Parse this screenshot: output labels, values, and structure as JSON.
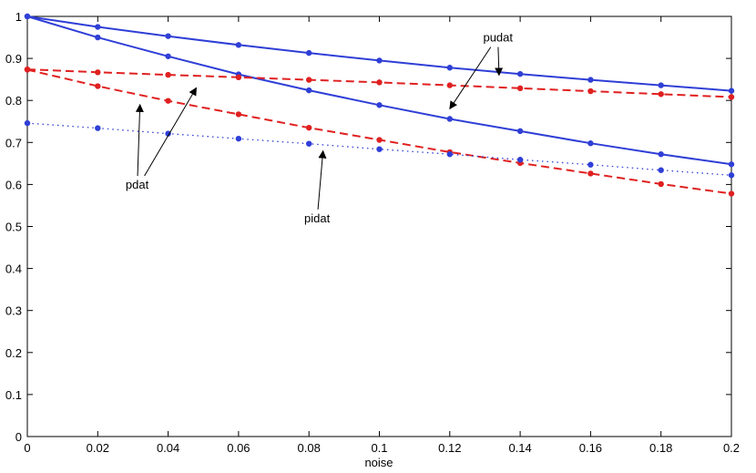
{
  "chart_data": {
    "type": "line",
    "title": "",
    "xlabel": "noise",
    "ylabel": "",
    "xlim": [
      0,
      0.2
    ],
    "ylim": [
      0,
      1
    ],
    "grid": false,
    "x": [
      0,
      0.02,
      0.04,
      0.06,
      0.08,
      0.1,
      0.12,
      0.14,
      0.16,
      0.18,
      0.2
    ],
    "xticks": [
      "0",
      "0.02",
      "0.04",
      "0.06",
      "0.08",
      "0.1",
      "0.12",
      "0.14",
      "0.16",
      "0.18",
      "0.2"
    ],
    "yticks": [
      "0",
      "0.1",
      "0.2",
      "0.3",
      "0.4",
      "0.5",
      "0.6",
      "0.7",
      "0.8",
      "0.9",
      "1"
    ],
    "series": [
      {
        "color": "#2f3fd6",
        "style": "solid",
        "values": [
          1.0,
          0.975,
          0.953,
          0.932,
          0.913,
          0.895,
          0.878,
          0.863,
          0.849,
          0.836,
          0.823
        ]
      },
      {
        "color": "#2f3fd6",
        "style": "solid",
        "values": [
          1.0,
          0.95,
          0.905,
          0.862,
          0.824,
          0.789,
          0.756,
          0.727,
          0.698,
          0.672,
          0.648
        ]
      },
      {
        "color": "#e02020",
        "style": "dashed",
        "values": [
          0.874,
          0.867,
          0.861,
          0.855,
          0.849,
          0.843,
          0.836,
          0.829,
          0.822,
          0.815,
          0.808
        ]
      },
      {
        "color": "#e02020",
        "style": "dashed",
        "values": [
          0.873,
          0.834,
          0.799,
          0.767,
          0.735,
          0.706,
          0.677,
          0.651,
          0.626,
          0.601,
          0.578
        ]
      },
      {
        "color": "#2f3fd6",
        "style": "dotted",
        "values": [
          0.746,
          0.734,
          0.721,
          0.709,
          0.697,
          0.684,
          0.672,
          0.659,
          0.647,
          0.634,
          0.622
        ]
      }
    ],
    "annotations": [
      {
        "text": "pudat",
        "label_at": [
          0.1337,
          0.94
        ],
        "arrows_to": [
          [
            0.12,
            0.78
          ],
          [
            0.134,
            0.86
          ]
        ]
      },
      {
        "text": "pdat",
        "label_at": [
          0.0312,
          0.59
        ],
        "arrows_to": [
          [
            0.032,
            0.79
          ],
          [
            0.048,
            0.83
          ]
        ]
      },
      {
        "text": "pidat",
        "label_at": [
          0.0823,
          0.51
        ],
        "arrows_to": [
          [
            0.084,
            0.68
          ]
        ]
      }
    ]
  }
}
